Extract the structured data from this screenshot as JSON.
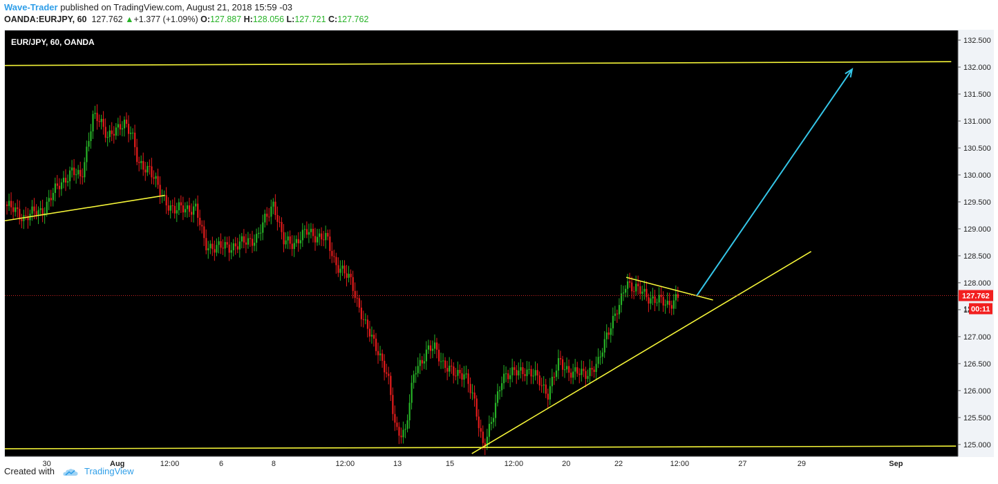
{
  "header": {
    "author": "Wave-Trader",
    "published_text": "published on TradingView.com, August 21, 2018 15:59 -03",
    "symbol": "OANDA:EURJPY, 60",
    "last": "127.762",
    "change_arrow": "▲",
    "change": "+1.377 (+1.09%)",
    "o_label": "O:",
    "o": "127.887",
    "h_label": "H:",
    "h": "128.056",
    "l_label": "L:",
    "l": "127.721",
    "c_label": "C:",
    "c": "127.762"
  },
  "footer": {
    "created_with": "Created with",
    "brand": "TradingView",
    "icon": "tradingview-cloud-icon"
  },
  "colors": {
    "up": "#27b327",
    "down": "#e61c1c",
    "line": "#f5f538",
    "arrow": "#35c6e8",
    "price_tag": "#f21f1f",
    "plot_bg": "#000000"
  },
  "chart_data": {
    "type": "candlestick",
    "title": "EUR/JPY, 60, OANDA",
    "ylim": [
      124.78,
      132.68
    ],
    "y_ticks": [
      "132.500",
      "132.000",
      "131.500",
      "131.000",
      "130.500",
      "130.000",
      "129.500",
      "129.000",
      "128.500",
      "128.000",
      "127.500",
      "127.000",
      "126.500",
      "126.000",
      "125.500",
      "125.000"
    ],
    "y_tick_values": [
      132.5,
      132.0,
      131.5,
      131.0,
      130.5,
      130.0,
      129.5,
      129.0,
      128.5,
      128.0,
      127.5,
      127.0,
      126.5,
      126.0,
      125.5,
      125.0
    ],
    "x_ticks": [
      "30",
      "Aug",
      "12:00",
      "6",
      "8",
      "12:00",
      "13",
      "15",
      "12:00",
      "20",
      "22",
      "12:00",
      "27",
      "29",
      "Sep"
    ],
    "x_tick_positions": [
      0.044,
      0.118,
      0.173,
      0.227,
      0.282,
      0.357,
      0.412,
      0.467,
      0.534,
      0.589,
      0.644,
      0.708,
      0.774,
      0.836,
      0.935
    ],
    "price_path": [
      [
        0.0,
        129.45
      ],
      [
        0.02,
        129.22
      ],
      [
        0.04,
        129.35
      ],
      [
        0.058,
        129.85
      ],
      [
        0.07,
        130.05
      ],
      [
        0.08,
        129.95
      ],
      [
        0.092,
        131.05
      ],
      [
        0.1,
        131.0
      ],
      [
        0.108,
        130.75
      ],
      [
        0.118,
        130.8
      ],
      [
        0.126,
        131.0
      ],
      [
        0.133,
        130.8
      ],
      [
        0.14,
        130.15
      ],
      [
        0.152,
        130.15
      ],
      [
        0.164,
        129.6
      ],
      [
        0.178,
        129.35
      ],
      [
        0.2,
        129.4
      ],
      [
        0.21,
        128.7
      ],
      [
        0.226,
        128.65
      ],
      [
        0.245,
        128.7
      ],
      [
        0.265,
        128.85
      ],
      [
        0.282,
        129.5
      ],
      [
        0.292,
        128.75
      ],
      [
        0.304,
        128.75
      ],
      [
        0.318,
        128.95
      ],
      [
        0.33,
        128.85
      ],
      [
        0.338,
        128.8
      ],
      [
        0.346,
        128.4
      ],
      [
        0.364,
        128.0
      ],
      [
        0.378,
        127.2
      ],
      [
        0.392,
        126.75
      ],
      [
        0.402,
        126.2
      ],
      [
        0.41,
        125.3
      ],
      [
        0.42,
        125.2
      ],
      [
        0.43,
        126.4
      ],
      [
        0.445,
        126.75
      ],
      [
        0.452,
        126.8
      ],
      [
        0.46,
        126.5
      ],
      [
        0.47,
        126.3
      ],
      [
        0.482,
        126.35
      ],
      [
        0.492,
        125.8
      ],
      [
        0.502,
        125.0
      ],
      [
        0.511,
        125.4
      ],
      [
        0.522,
        126.3
      ],
      [
        0.532,
        126.3
      ],
      [
        0.546,
        126.4
      ],
      [
        0.56,
        126.2
      ],
      [
        0.57,
        125.95
      ],
      [
        0.582,
        126.55
      ],
      [
        0.596,
        126.3
      ],
      [
        0.612,
        126.35
      ],
      [
        0.622,
        126.45
      ],
      [
        0.632,
        127.1
      ],
      [
        0.645,
        127.55
      ],
      [
        0.652,
        128.05
      ],
      [
        0.66,
        127.9
      ],
      [
        0.68,
        127.7
      ],
      [
        0.695,
        127.6
      ],
      [
        0.708,
        127.76
      ]
    ],
    "overlay_lines": [
      {
        "label": "upper-channel-line",
        "x": [
          0.0,
          0.993
        ],
        "y": [
          132.03,
          132.1
        ]
      },
      {
        "label": "lower-channel-line",
        "x": [
          0.0,
          0.998
        ],
        "y": [
          124.92,
          124.97
        ]
      },
      {
        "label": "early-support-line",
        "x": [
          0.0,
          0.168
        ],
        "y": [
          129.15,
          129.62
        ]
      },
      {
        "label": "rising-trendline",
        "x": [
          0.49,
          0.846
        ],
        "y": [
          124.83,
          128.58
        ]
      },
      {
        "label": "triangle-upper-line",
        "x": [
          0.652,
          0.743
        ],
        "y": [
          128.1,
          127.68
        ]
      },
      {
        "label": "projection-arrow",
        "x": [
          0.726,
          0.889
        ],
        "y": [
          127.76,
          131.96
        ]
      }
    ],
    "last_price_tag": "127.762",
    "countdown_tag": "00:11",
    "countdown_price_prefix": "12"
  }
}
